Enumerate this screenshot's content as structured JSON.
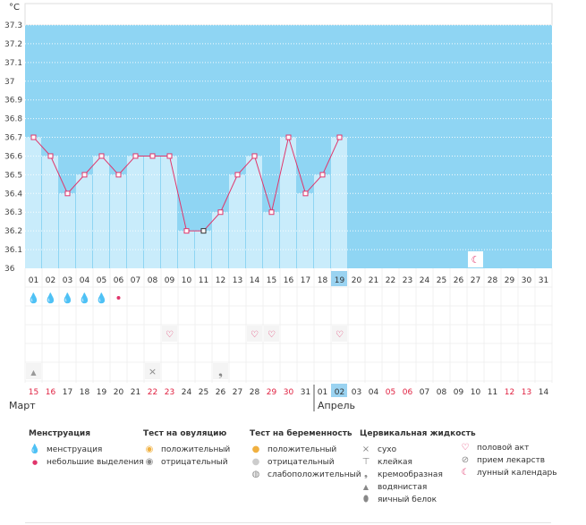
{
  "chart_data": {
    "type": "line",
    "unit_label": "°C",
    "y_ticks": [
      "37.3",
      "37.2",
      "37.1",
      "37",
      "36.9",
      "36.8",
      "36.7",
      "36.6",
      "36.5",
      "36.4",
      "36.3",
      "36.2",
      "36.1",
      "36"
    ],
    "ylim": [
      36.0,
      37.3
    ],
    "cycle_days": [
      "01",
      "02",
      "03",
      "04",
      "05",
      "06",
      "07",
      "08",
      "09",
      "10",
      "11",
      "12",
      "13",
      "14",
      "15",
      "16",
      "17",
      "18",
      "19",
      "20",
      "21",
      "22",
      "23",
      "24",
      "25",
      "26",
      "27",
      "28",
      "29",
      "30",
      "31"
    ],
    "temperatures": [
      36.7,
      36.6,
      36.4,
      36.5,
      36.6,
      36.5,
      36.6,
      36.6,
      36.6,
      36.2,
      36.2,
      36.3,
      36.5,
      36.6,
      36.3,
      36.7,
      36.4,
      36.5,
      36.7
    ],
    "highlight_day": "19",
    "calendar_dates": [
      "15",
      "16",
      "17",
      "18",
      "19",
      "20",
      "21",
      "22",
      "23",
      "24",
      "25",
      "26",
      "27",
      "28",
      "29",
      "30",
      "31",
      "01",
      "02",
      "03",
      "04",
      "05",
      "06",
      "07",
      "08",
      "09",
      "10",
      "11",
      "12",
      "13",
      "14"
    ],
    "weekend_dates_index": [
      0,
      1,
      7,
      8,
      14,
      15,
      21,
      22,
      28,
      29
    ],
    "highlight_date": "02",
    "months": {
      "first": "Март",
      "second": "Апрель"
    }
  },
  "markers": {
    "menstruation": [
      0,
      1,
      2,
      3,
      4
    ],
    "spotting": [
      5
    ],
    "intercourse": [
      8,
      13,
      14,
      18
    ],
    "dry": [
      7
    ],
    "watery": [
      0
    ],
    "creamy": [
      11
    ],
    "lunar": [
      26
    ]
  },
  "legend": {
    "menstruation": {
      "title": "Менструация",
      "items": [
        "менструация",
        "небольшие выделения"
      ]
    },
    "ovulation": {
      "title": "Тест на овуляцию",
      "items": [
        "положительный",
        "отрицательный"
      ]
    },
    "pregnancy": {
      "title": "Тест на беременность",
      "items": [
        "положительный",
        "отрицательный",
        "слабоположительный"
      ]
    },
    "cervical": {
      "title": "Цервикальная жидкость",
      "items": [
        "сухо",
        "клейкая",
        "кремообразная",
        "водянистая",
        "яичный белок"
      ]
    },
    "other": {
      "items": [
        "половой акт",
        "прием лекарств",
        "лунный календарь"
      ]
    }
  },
  "colors": {
    "accent": "#e0356b",
    "sky": "#8fd5f3",
    "bar": "#c9ecfb",
    "highlight": "#9ad3f1"
  }
}
